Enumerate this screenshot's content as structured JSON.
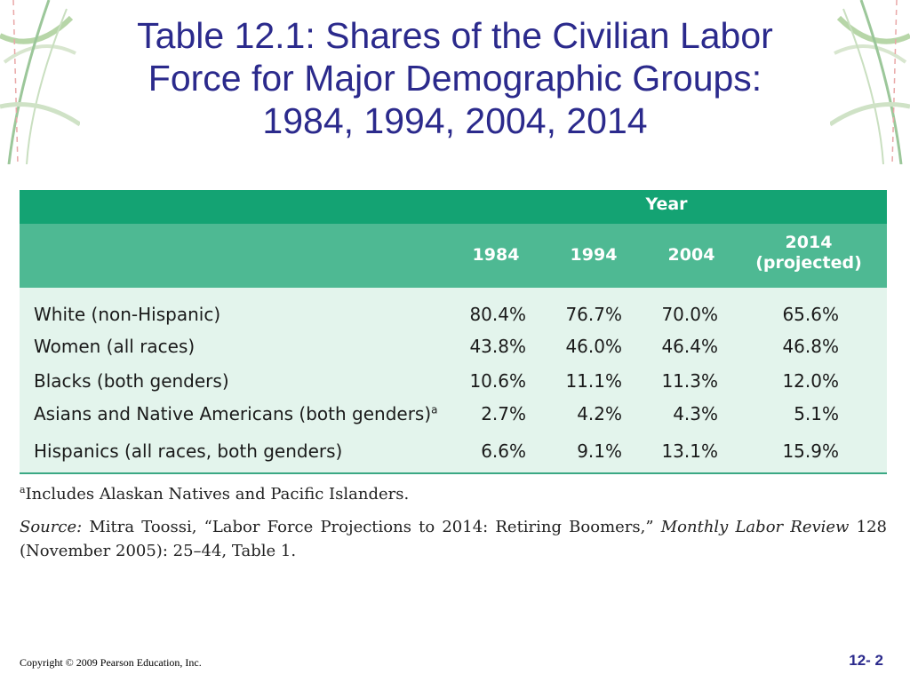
{
  "slide": {
    "title_lines": [
      "Table 12.1: Shares of the Civilian Labor",
      "Force for Major Demographic Groups:",
      "1984, 1994, 2004, 2014"
    ]
  },
  "table": {
    "group_header": "Year",
    "columns": [
      "1984",
      "1994",
      "2004"
    ],
    "last_column": [
      "2014",
      "(projected)"
    ],
    "rows": [
      {
        "label": "White (non-Hispanic)",
        "note": "",
        "values": [
          "80.4%",
          "76.7%",
          "70.0%",
          "65.6%"
        ]
      },
      {
        "label": "Women (all races)",
        "note": "",
        "values": [
          "43.8%",
          "46.0%",
          "46.4%",
          "46.8%"
        ]
      },
      {
        "label": "Blacks (both genders)",
        "note": "",
        "values": [
          "10.6%",
          "11.1%",
          "11.3%",
          "12.0%"
        ]
      },
      {
        "label": "Asians and Native Americans (both genders)",
        "note": "a",
        "values": [
          "2.7%",
          "4.2%",
          "4.3%",
          "5.1%"
        ]
      },
      {
        "label": "Hispanics (all races, both genders)",
        "note": "",
        "values": [
          "6.6%",
          "9.1%",
          "13.1%",
          "15.9%"
        ]
      }
    ]
  },
  "footnotes": {
    "note_marker": "a",
    "note_text": "Includes Alaskan Natives and Pacific Islanders.",
    "source_label": "Source:",
    "source_text_1": " Mitra Toossi, “Labor Force Projections to 2014: Retiring Boomers,” ",
    "source_journal": "Monthly Labor Review",
    "source_text_2": " 128 (November 2005): 25–44, Table 1."
  },
  "footer": {
    "copyright": "Copyright © 2009 Pearson Education, Inc.",
    "page_number": "12- 2"
  },
  "colors": {
    "title": "#2b2a8c",
    "header_dark": "#14a373",
    "header_light": "#4eb993",
    "table_body": "#e3f4ec"
  }
}
